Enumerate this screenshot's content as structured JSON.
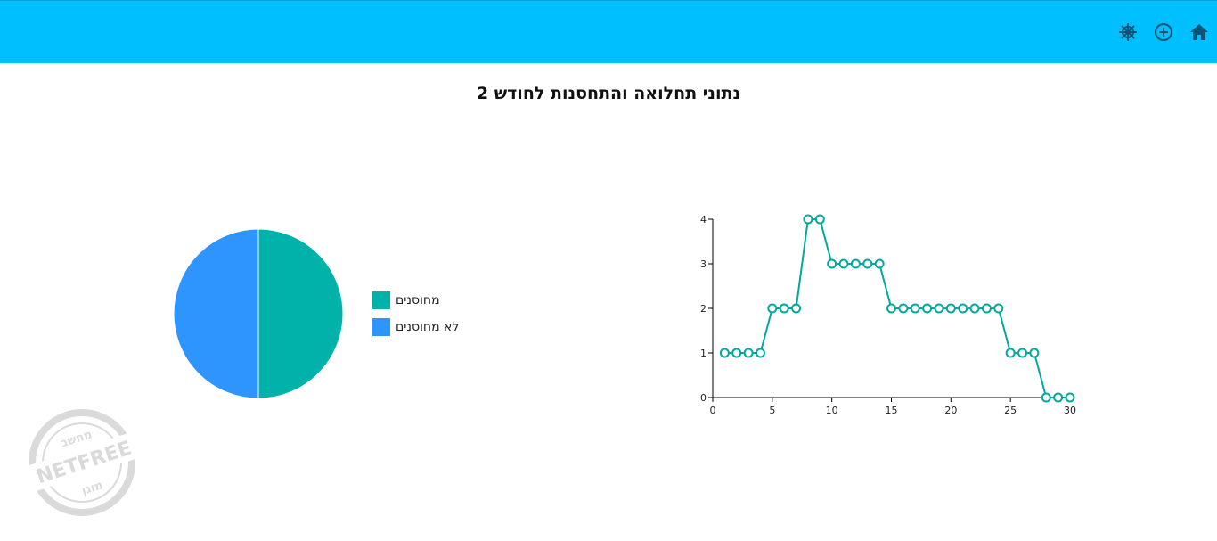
{
  "header": {
    "background": "#00bfff",
    "icons": [
      "home-icon",
      "add-circle-icon",
      "settings-wheel-icon"
    ],
    "icon_color": "#0a5577"
  },
  "page": {
    "title": "נתוני תחלואה והתחסנות לחודש 2"
  },
  "chart_data": [
    {
      "type": "pie",
      "labels": [
        "מחוסנים",
        "לא מחוסנים"
      ],
      "values": [
        50,
        50
      ],
      "colors": [
        "#00b2a9",
        "#2e95ff"
      ],
      "legend": "right"
    },
    {
      "type": "line",
      "x": [
        1,
        2,
        3,
        4,
        5,
        6,
        7,
        8,
        9,
        10,
        11,
        12,
        13,
        14,
        15,
        16,
        17,
        18,
        19,
        20,
        21,
        22,
        23,
        24,
        25,
        26,
        27,
        28,
        29,
        30
      ],
      "y": [
        1,
        1,
        1,
        1,
        2,
        2,
        2,
        4,
        4,
        3,
        3,
        3,
        3,
        3,
        2,
        2,
        2,
        2,
        2,
        2,
        2,
        2,
        2,
        2,
        1,
        1,
        1,
        0,
        0,
        0
      ],
      "xlim": [
        0,
        30
      ],
      "ylim": [
        0,
        4
      ],
      "xticks": [
        0,
        5,
        10,
        15,
        20,
        25,
        30
      ],
      "yticks": [
        0,
        1,
        2,
        3,
        4
      ],
      "color": "#00a99d",
      "grid": false
    }
  ],
  "watermark": {
    "top_text": "מחשב",
    "main_text": "NETFREE",
    "bottom_text": "מוגן"
  }
}
